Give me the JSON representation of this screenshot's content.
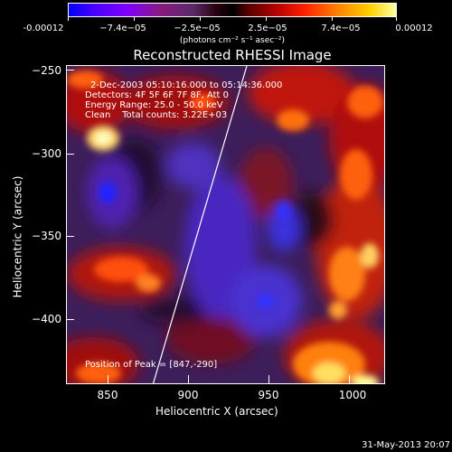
{
  "colorbar": {
    "labels": [
      "-0.00012",
      "−7.4e−05",
      "−2.5e−05",
      "2.5e−05",
      "7.4e−05",
      "0.00012"
    ],
    "units": "(photons cm⁻² s⁻¹ asec⁻²)"
  },
  "title": "Reconstructed RHESSI Image",
  "annotations": {
    "time_range": "2-Dec-2003 05:10:16.000 to 05:14:36.000",
    "detectors": "Detectors: 4F 5F 6F 7F 8F, Att 0",
    "energy": "Energy Range: 25.0 - 50.0 keV",
    "method": "Clean    Total counts: 3.22E+03",
    "peak": "Position of Peak = [847,-290]"
  },
  "axes": {
    "xlabel": "Heliocentric X (arcsec)",
    "ylabel": "Heliocentric Y (arcsec)",
    "xticks": [
      "850",
      "900",
      "950",
      "1000"
    ],
    "yticks": [
      "−250",
      "−300",
      "−350",
      "−400"
    ]
  },
  "footer": "31-May-2013 20:07"
}
